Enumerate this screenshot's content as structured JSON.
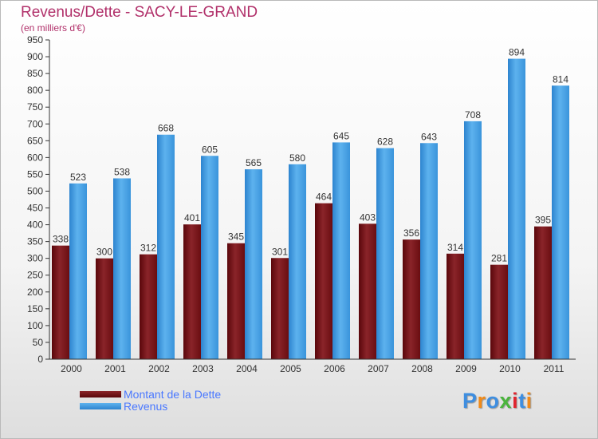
{
  "title": "Revenus/Dette - SACY-LE-GRAND",
  "subtitle": "(en milliers d'€)",
  "logo": {
    "letters": [
      "P",
      "r",
      "o",
      "x",
      "i",
      "t",
      "i"
    ],
    "colors": [
      "#3e8ee0",
      "#f08a19",
      "#3e8ee0",
      "#4ab43c",
      "#e0262f",
      "#3e8ee0",
      "#f08a19"
    ]
  },
  "legend": [
    {
      "label": "Montant de la Dette",
      "color": "#6b0a0e"
    },
    {
      "label": "Revenus",
      "color": "#3d9ce3"
    }
  ],
  "chart_data": {
    "type": "bar",
    "title": "Revenus/Dette - SACY-LE-GRAND",
    "subtitle": "(en milliers d'€)",
    "categories": [
      "2000",
      "2001",
      "2002",
      "2003",
      "2004",
      "2005",
      "2006",
      "2007",
      "2008",
      "2009",
      "2010",
      "2011"
    ],
    "series": [
      {
        "name": "Montant de la Dette",
        "color": "#6b0a0e",
        "values": [
          338,
          300,
          312,
          401,
          345,
          301,
          464,
          403,
          356,
          314,
          281,
          395
        ]
      },
      {
        "name": "Revenus",
        "color": "#3d9ce3",
        "values": [
          523,
          538,
          668,
          605,
          565,
          580,
          645,
          628,
          643,
          708,
          894,
          814
        ]
      }
    ],
    "ylim": [
      0,
      950
    ],
    "ytick_step": 50,
    "grid": false,
    "legend_position": "bottom-left"
  }
}
